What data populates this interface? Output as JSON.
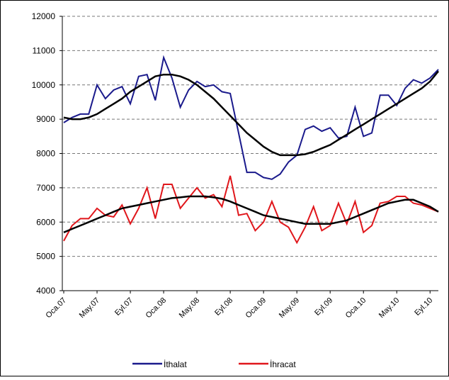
{
  "chart_data": {
    "type": "line",
    "categories": [
      "Oca.07",
      null,
      null,
      null,
      "May.07",
      null,
      null,
      null,
      "Eyl.07",
      null,
      null,
      null,
      "Oca.08",
      null,
      null,
      null,
      "May.08",
      null,
      null,
      null,
      "Eyl.08",
      null,
      null,
      null,
      "Oca.09",
      null,
      null,
      null,
      "May.09",
      null,
      null,
      null,
      "Eyl.09",
      null,
      null,
      null,
      "Oca.10",
      null,
      null,
      null,
      "May.10",
      null,
      null,
      null,
      "Eyl.10",
      null
    ],
    "series": [
      {
        "name": "İthalat",
        "color": "#1a1a8c",
        "values": [
          8900,
          9050,
          9150,
          9150,
          10000,
          9600,
          9850,
          9950,
          9450,
          10250,
          10300,
          9550,
          10800,
          10200,
          9350,
          9850,
          10100,
          9950,
          10000,
          9800,
          9750,
          8600,
          7450,
          7450,
          7300,
          7250,
          7400,
          7750,
          7950,
          8700,
          8800,
          8650,
          8750,
          8450,
          8500,
          9350,
          8500,
          8600,
          9700,
          9700,
          9400,
          9900,
          10150,
          10050,
          10200,
          10450
        ],
        "trend_color": "#000000",
        "trend": [
          9050,
          9000,
          9000,
          9050,
          9150,
          9300,
          9450,
          9600,
          9800,
          9950,
          10100,
          10250,
          10300,
          10300,
          10250,
          10150,
          10000,
          9800,
          9600,
          9350,
          9100,
          8850,
          8600,
          8400,
          8200,
          8050,
          7950,
          7950,
          7950,
          7980,
          8050,
          8150,
          8250,
          8400,
          8550,
          8700,
          8850,
          9000,
          9150,
          9300,
          9450,
          9600,
          9750,
          9900,
          10100,
          10400
        ]
      },
      {
        "name": "İhracat",
        "color": "#e0161b",
        "values": [
          5450,
          5900,
          6100,
          6100,
          6400,
          6200,
          6150,
          6500,
          5950,
          6400,
          7000,
          6100,
          7100,
          7100,
          6400,
          6700,
          7000,
          6700,
          6800,
          6450,
          7350,
          6200,
          6250,
          5750,
          6000,
          6600,
          6000,
          5850,
          5400,
          5850,
          6450,
          5750,
          5900,
          6550,
          5950,
          6600,
          5700,
          5900,
          6550,
          6600,
          6750,
          6750,
          6550,
          6500,
          6400,
          6300
        ],
        "trend_color": "#000000",
        "trend": [
          5700,
          5800,
          5900,
          6000,
          6100,
          6200,
          6300,
          6400,
          6450,
          6500,
          6550,
          6600,
          6650,
          6700,
          6720,
          6750,
          6750,
          6750,
          6720,
          6680,
          6600,
          6500,
          6400,
          6300,
          6200,
          6150,
          6100,
          6050,
          6000,
          5950,
          5950,
          5950,
          5950,
          6000,
          6050,
          6150,
          6250,
          6350,
          6450,
          6550,
          6600,
          6650,
          6650,
          6550,
          6450,
          6300
        ]
      }
    ],
    "ylim": [
      4000,
      12000
    ],
    "yticks": [
      4000,
      5000,
      6000,
      7000,
      8000,
      9000,
      10000,
      11000,
      12000
    ],
    "grid": true,
    "legend": "bottom"
  }
}
